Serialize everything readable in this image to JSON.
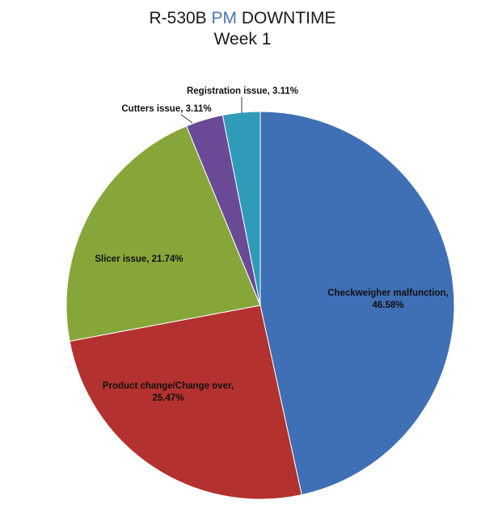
{
  "title": {
    "prefix": "R-530B ",
    "highlight": "PM",
    "suffix": " DOWNTIME",
    "line2": "Week 1",
    "highlight_color": "#4a78b8"
  },
  "chart_data": {
    "type": "pie",
    "title": "R-530B PM DOWNTIME Week 1",
    "slices": [
      {
        "label": "Checkweigher malfunction",
        "value": 46.58,
        "display": "46.58%",
        "color": "#3f6fb5"
      },
      {
        "label": "Product change/Change over",
        "value": 25.47,
        "display": "25.47%",
        "color": "#b3312e"
      },
      {
        "label": "Slicer issue",
        "value": 21.74,
        "display": "21.74%",
        "color": "#86a63a"
      },
      {
        "label": "Cutters issue",
        "value": 3.11,
        "display": "3.11%",
        "color": "#6a4a96"
      },
      {
        "label": "Registration issue",
        "value": 3.11,
        "display": "3.11%",
        "color": "#2f9bb8"
      }
    ]
  }
}
